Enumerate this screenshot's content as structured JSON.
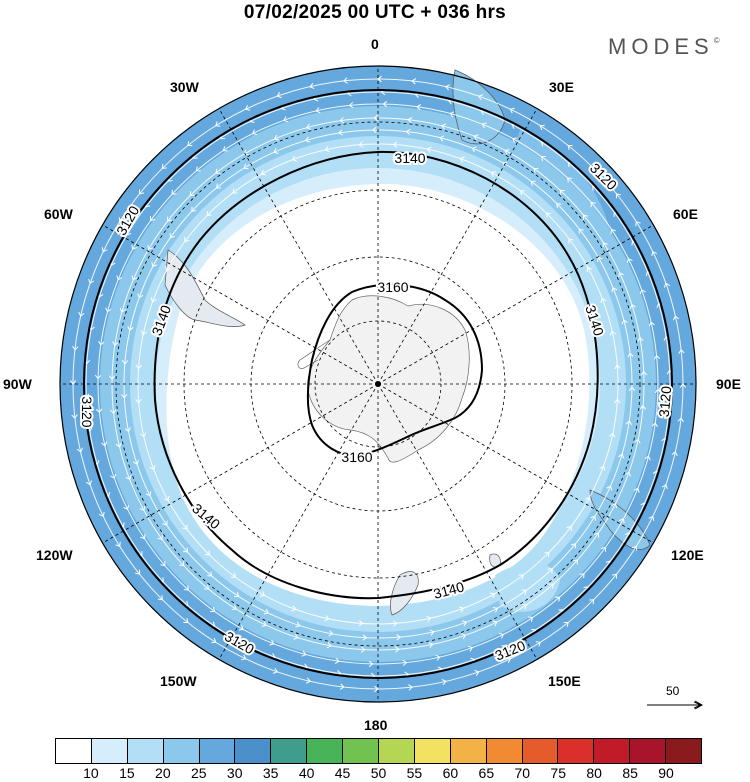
{
  "title": "07/02/2025  00 UTC  + 036 hrs",
  "brand": "MODES",
  "brand_mark": "©",
  "longitude_labels": {
    "lon_0": "0",
    "lon_30e": "30E",
    "lon_60e": "60E",
    "lon_90e": "90E",
    "lon_120e": "120E",
    "lon_150e": "150E",
    "lon_180": "180",
    "lon_150w": "150W",
    "lon_120w": "120W",
    "lon_90w": "90W",
    "lon_60w": "60W",
    "lon_30w": "30W"
  },
  "contour_labels": [
    "3160",
    "3160",
    "3140",
    "3140",
    "3140",
    "3140",
    "3140",
    "3120",
    "3120",
    "3120",
    "3120",
    "3120"
  ],
  "reference_vector": "50",
  "colorbar": {
    "colors": [
      "#ffffff",
      "#d6eefb",
      "#b2dff6",
      "#8cc7ec",
      "#64a8de",
      "#4b8fcb",
      "#3e9d8c",
      "#46b457",
      "#72c251",
      "#b5d652",
      "#f3e262",
      "#f3b245",
      "#f08a33",
      "#e65b2b",
      "#d9312a",
      "#c11b2a",
      "#a8142a",
      "#8b1a1c"
    ],
    "labels": [
      "10",
      "15",
      "20",
      "25",
      "30",
      "35",
      "40",
      "45",
      "50",
      "55",
      "60",
      "65",
      "70",
      "75",
      "80",
      "85",
      "90"
    ]
  }
}
